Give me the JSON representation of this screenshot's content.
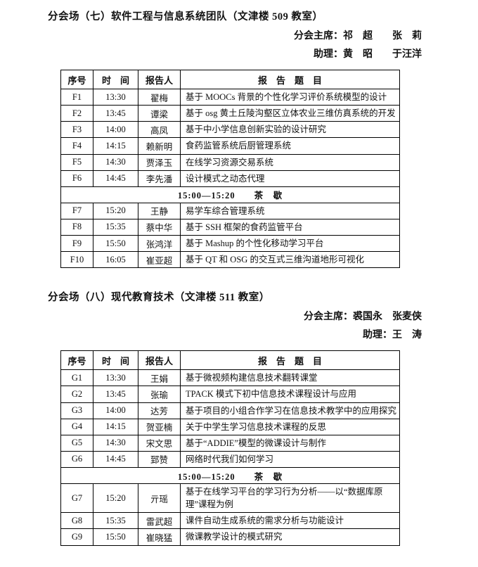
{
  "sections": [
    {
      "title": "分会场（七）软件工程与信息系统团队（文津楼 509 教室）",
      "chair_line": "分会主席：祁　超　　张　莉",
      "assistant_line": "助理：黄　昭　　于汪洋",
      "table": {
        "headers": [
          "序号",
          "时　间",
          "报告人",
          "报　告　题　目"
        ],
        "rows": [
          {
            "type": "talk",
            "no": "F1",
            "time": "13:30",
            "presenter": "翟梅",
            "title": "基于 MOOCs 背景的个性化学习评价系统模型的设计"
          },
          {
            "type": "talk",
            "no": "F2",
            "time": "13:45",
            "presenter": "谭梁",
            "title": "基于 osg 黄土丘陵沟壑区立体农业三维仿真系统的开发"
          },
          {
            "type": "talk",
            "no": "F3",
            "time": "14:00",
            "presenter": "高凤",
            "title": "基于中小学信息创新实验的设计研究"
          },
          {
            "type": "talk",
            "no": "F4",
            "time": "14:15",
            "presenter": "赖新明",
            "title": "食药监管系统后厨管理系统"
          },
          {
            "type": "talk",
            "no": "F5",
            "time": "14:30",
            "presenter": "贾泽玉",
            "title": "在线学习资源交易系统"
          },
          {
            "type": "talk",
            "no": "F6",
            "time": "14:45",
            "presenter": "李先潘",
            "title": "设计模式之动态代理"
          },
          {
            "type": "break",
            "text": "15:00—15:20　　茶　歇"
          },
          {
            "type": "talk",
            "no": "F7",
            "time": "15:20",
            "presenter": "王静",
            "title": "易学车综合管理系统"
          },
          {
            "type": "talk",
            "no": "F8",
            "time": "15:35",
            "presenter": "蔡中华",
            "title": "基于 SSH 框架的食药监管平台"
          },
          {
            "type": "talk",
            "no": "F9",
            "time": "15:50",
            "presenter": "张鸿洋",
            "title": "基于 Mashup 的个性化移动学习平台"
          },
          {
            "type": "talk",
            "no": "F10",
            "time": "16:05",
            "presenter": "崔亚超",
            "title": "基于 QT 和 OSG 的交互式三维沟道地形可视化"
          }
        ]
      }
    },
    {
      "title": "分会场（八）现代教育技术（文津楼 511 教室）",
      "chair_line": "分会主席：裘国永　张麦侠",
      "assistant_line": "助理：王　涛",
      "table": {
        "headers": [
          "序号",
          "时　间",
          "报告人",
          "报　告　题　目"
        ],
        "rows": [
          {
            "type": "talk",
            "no": "G1",
            "time": "13:30",
            "presenter": "王娟",
            "title": "基于微视频构建信息技术翻转课堂"
          },
          {
            "type": "talk",
            "no": "G2",
            "time": "13:45",
            "presenter": "张瑜",
            "title": "TPACK 模式下初中信息技术课程设计与应用"
          },
          {
            "type": "talk",
            "no": "G3",
            "time": "14:00",
            "presenter": "达芳",
            "title": "基于项目的小组合作学习在信息技术教学中的应用探究"
          },
          {
            "type": "talk",
            "no": "G4",
            "time": "14:15",
            "presenter": "贺亚楠",
            "title": "关于中学生学习信息技术课程的反思"
          },
          {
            "type": "talk",
            "no": "G5",
            "time": "14:30",
            "presenter": "宋文思",
            "title": "基于“ADDIE”模型的微课设计与制作"
          },
          {
            "type": "talk",
            "no": "G6",
            "time": "14:45",
            "presenter": "郅赞",
            "title": "网络时代我们如何学习"
          },
          {
            "type": "break",
            "text": "15:00—15:20　　茶　歇"
          },
          {
            "type": "talk",
            "no": "G7",
            "time": "15:20",
            "presenter": "亓瑶",
            "title": "基于在线学习平台的学习行为分析——以“数据库原理”课程为例"
          },
          {
            "type": "talk",
            "no": "G8",
            "time": "15:35",
            "presenter": "雷武超",
            "title": "课件自动生成系统的需求分析与功能设计"
          },
          {
            "type": "talk",
            "no": "G9",
            "time": "15:50",
            "presenter": "崔晓猛",
            "title": "微课教学设计的模式研究"
          }
        ]
      }
    }
  ]
}
